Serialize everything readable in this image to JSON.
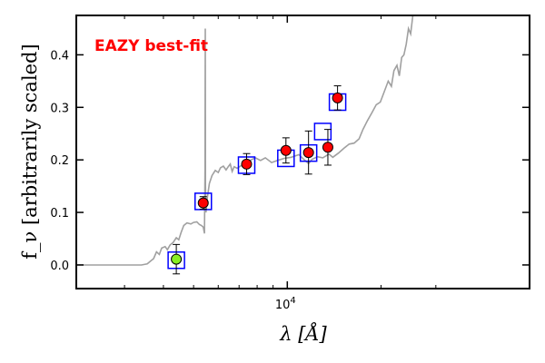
{
  "chart_data": {
    "type": "scatter",
    "title": "EAZY best-fit",
    "title_color": "#ff0000",
    "xlabel": "λ [Å]",
    "ylabel": "f_ν [arbitrarily scaled]",
    "x_scale": "log",
    "xlim": [
      2100,
      60000
    ],
    "ylim": [
      -0.045,
      0.475
    ],
    "x_tick_labels": [
      {
        "value": 10000,
        "base": "10",
        "exp": "4"
      }
    ],
    "y_ticks": [
      0.0,
      0.1,
      0.2,
      0.3,
      0.4
    ],
    "y_tick_labels": [
      "0.0",
      "0.1",
      "0.2",
      "0.3",
      "0.4"
    ],
    "x_minor_ticks": [
      3000,
      4000,
      5000,
      6000,
      7000,
      8000,
      9000,
      20000,
      30000
    ],
    "model_color": "#a0a0a0",
    "model_points": [
      [
        2100,
        0.0
      ],
      [
        3400,
        0.0
      ],
      [
        3550,
        0.002
      ],
      [
        3650,
        0.008
      ],
      [
        3720,
        0.012
      ],
      [
        3800,
        0.025
      ],
      [
        3880,
        0.02
      ],
      [
        3950,
        0.032
      ],
      [
        4050,
        0.035
      ],
      [
        4120,
        0.029
      ],
      [
        4200,
        0.038
      ],
      [
        4300,
        0.043
      ],
      [
        4400,
        0.052
      ],
      [
        4480,
        0.048
      ],
      [
        4560,
        0.062
      ],
      [
        4650,
        0.075
      ],
      [
        4760,
        0.08
      ],
      [
        4900,
        0.078
      ],
      [
        5000,
        0.081
      ],
      [
        5120,
        0.082
      ],
      [
        5220,
        0.077
      ],
      [
        5300,
        0.075
      ],
      [
        5370,
        0.072
      ],
      [
        5420,
        0.06
      ],
      [
        5440,
        0.18
      ],
      [
        5450,
        0.45
      ],
      [
        5460,
        0.15
      ],
      [
        5480,
        0.1
      ],
      [
        5530,
        0.126
      ],
      [
        5620,
        0.155
      ],
      [
        5730,
        0.17
      ],
      [
        5870,
        0.18
      ],
      [
        6000,
        0.176
      ],
      [
        6100,
        0.185
      ],
      [
        6230,
        0.188
      ],
      [
        6360,
        0.181
      ],
      [
        6480,
        0.188
      ],
      [
        6560,
        0.192
      ],
      [
        6650,
        0.178
      ],
      [
        6750,
        0.187
      ],
      [
        6900,
        0.184
      ],
      [
        7150,
        0.19
      ],
      [
        7400,
        0.193
      ],
      [
        7650,
        0.2
      ],
      [
        7900,
        0.204
      ],
      [
        8200,
        0.199
      ],
      [
        8500,
        0.204
      ],
      [
        8900,
        0.195
      ],
      [
        9300,
        0.199
      ],
      [
        9800,
        0.203
      ],
      [
        10300,
        0.205
      ],
      [
        10900,
        0.21
      ],
      [
        11300,
        0.201
      ],
      [
        11700,
        0.193
      ],
      [
        12000,
        0.201
      ],
      [
        12500,
        0.206
      ],
      [
        13000,
        0.204
      ],
      [
        13600,
        0.211
      ],
      [
        14000,
        0.205
      ],
      [
        14600,
        0.213
      ],
      [
        15200,
        0.222
      ],
      [
        15800,
        0.23
      ],
      [
        16400,
        0.232
      ],
      [
        17000,
        0.24
      ],
      [
        17500,
        0.258
      ],
      [
        18100,
        0.275
      ],
      [
        18700,
        0.29
      ],
      [
        19300,
        0.305
      ],
      [
        19900,
        0.31
      ],
      [
        20500,
        0.33
      ],
      [
        21100,
        0.35
      ],
      [
        21600,
        0.34
      ],
      [
        22000,
        0.37
      ],
      [
        22500,
        0.38
      ],
      [
        22900,
        0.36
      ],
      [
        23300,
        0.395
      ],
      [
        23700,
        0.4
      ],
      [
        24100,
        0.42
      ],
      [
        24500,
        0.45
      ],
      [
        24900,
        0.44
      ],
      [
        25300,
        0.475
      ]
    ],
    "series": [
      {
        "marker": "open-square",
        "color": "#0000ff",
        "points": [
          [
            4400,
            0.009
          ],
          [
            5370,
            0.121
          ],
          [
            7400,
            0.19
          ],
          [
            9900,
            0.203
          ],
          [
            11700,
            0.213
          ],
          [
            13000,
            0.254
          ],
          [
            14500,
            0.31
          ]
        ]
      },
      {
        "marker": "filled-circle",
        "color": "#ff0000",
        "points": [
          {
            "x": 5370,
            "y": 0.118,
            "err": 0.012
          },
          {
            "x": 7400,
            "y": 0.192,
            "err": 0.02
          },
          {
            "x": 9900,
            "y": 0.218,
            "err": 0.024
          },
          {
            "x": 11700,
            "y": 0.214,
            "err": 0.041
          },
          {
            "x": 13500,
            "y": 0.224,
            "err": 0.034
          },
          {
            "x": 14500,
            "y": 0.318,
            "err": 0.023
          }
        ]
      },
      {
        "marker": "filled-circle",
        "color": "#88ee22",
        "points": [
          {
            "x": 4400,
            "y": 0.011,
            "err": 0.028
          }
        ]
      }
    ],
    "grid": false,
    "legend": "none"
  }
}
